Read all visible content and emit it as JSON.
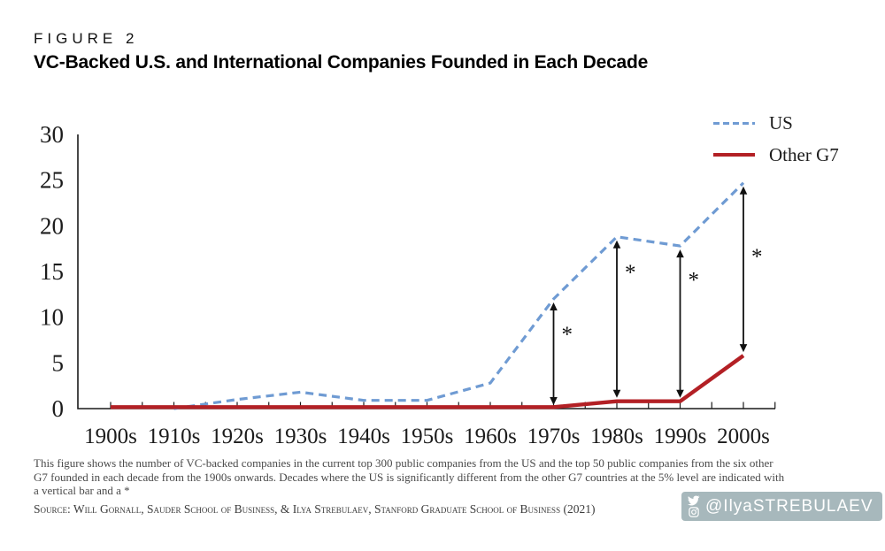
{
  "header": {
    "kicker": "FIGURE 2",
    "title": "VC-Backed U.S. and International Companies Founded in Each Decade"
  },
  "legend": {
    "items": [
      {
        "label": "US",
        "style": "dashed",
        "color": "#6f9bd3"
      },
      {
        "label": "Other G7",
        "style": "solid",
        "color": "#b32025"
      }
    ]
  },
  "chart_data": {
    "type": "line",
    "title": "VC-Backed U.S. and International Companies Founded in Each Decade",
    "xlabel": "",
    "ylabel": "",
    "categories": [
      "1900s",
      "1910s",
      "1920s",
      "1930s",
      "1940s",
      "1950s",
      "1960s",
      "1970s",
      "1980s",
      "1990s",
      "2000s"
    ],
    "series": [
      {
        "name": "US",
        "style": "dashed",
        "color": "#6f9bd3",
        "values": [
          0,
          0,
          1.0,
          1.8,
          0.9,
          0.9,
          2.8,
          12.0,
          18.8,
          17.8,
          24.7
        ]
      },
      {
        "name": "Other G7",
        "style": "solid",
        "color": "#b32025",
        "values": [
          0,
          0,
          0,
          0,
          0,
          0,
          0,
          0,
          0.8,
          0.8,
          5.8
        ]
      }
    ],
    "ylim": [
      0,
      30
    ],
    "y_ticks": [
      0,
      5,
      10,
      15,
      20,
      25,
      30
    ],
    "grid": false,
    "legend_position": "top-right",
    "annotations": {
      "note": "double-headed vertical arrows with * mark decades where US differs from other G7 at 5% level",
      "significance_arrows": [
        {
          "category": "1970s",
          "index": 7,
          "from": 0,
          "to": 12.0,
          "label": "*",
          "star_frac": 0.26
        },
        {
          "category": "1980s",
          "index": 8,
          "from": 0.8,
          "to": 18.8,
          "label": "*",
          "star_frac": 0.17
        },
        {
          "category": "1990s",
          "index": 9,
          "from": 0.8,
          "to": 17.8,
          "label": "*",
          "star_frac": 0.17
        },
        {
          "category": "2000s",
          "index": 10,
          "from": 5.8,
          "to": 24.7,
          "label": "*",
          "star_frac": 0.39
        }
      ]
    }
  },
  "footnote": {
    "lines": [
      "This figure shows the number of VC-backed companies in the current top 300 public companies from the US and the top 50 public companies from the six other",
      "G7 founded in each decade from the 1900s onwards. Decades where the US is significantly different from the other G7 countries at the 5% level are indicated with",
      "a vertical bar and a *"
    ]
  },
  "footer": {
    "source": "Source: Will Gornall, Sauder School of Business, & Ilya Strebulaev, Stanford Graduate School of Business (2021)",
    "badge": {
      "handle": "@IlyaSTREBULAEV",
      "icons": [
        "twitter-icon",
        "instagram-icon"
      ],
      "bg_color": "#a7b8bc"
    }
  },
  "colors": {
    "us_line": "#6f9bd3",
    "other_g7_line": "#b32025",
    "axis": "#1a1a1a",
    "footnote_text": "#4a4a4a",
    "badge_bg": "#a7b8bc"
  }
}
